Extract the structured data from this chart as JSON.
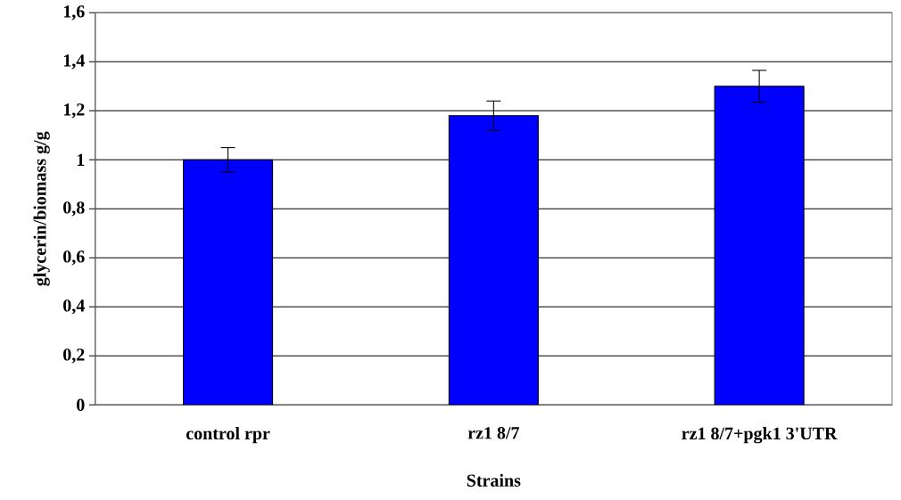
{
  "chart_data": {
    "type": "bar",
    "xlabel": "Strains",
    "ylabel": "glycerin/biomass g/g",
    "categories": [
      "control rpr",
      "rz1 8/7",
      "rz1 8/7+pgk1 3'UTR"
    ],
    "values": [
      1.0,
      1.18,
      1.3
    ],
    "errors": [
      0.05,
      0.06,
      0.065
    ],
    "color": "#0000ff",
    "ylim": [
      0,
      1.6
    ],
    "yticks": [
      0,
      {
        "value": 0.2,
        "label": "0,2"
      },
      {
        "value": 0.4,
        "label": "0,4"
      },
      {
        "value": 0.6,
        "label": "0,6"
      },
      {
        "value": 0.8,
        "label": "0,8"
      },
      1,
      {
        "value": 1.2,
        "label": "1,2"
      },
      {
        "value": 1.4,
        "label": "1,4"
      },
      {
        "value": 1.6,
        "label": "1,6"
      }
    ],
    "grid": "y"
  }
}
